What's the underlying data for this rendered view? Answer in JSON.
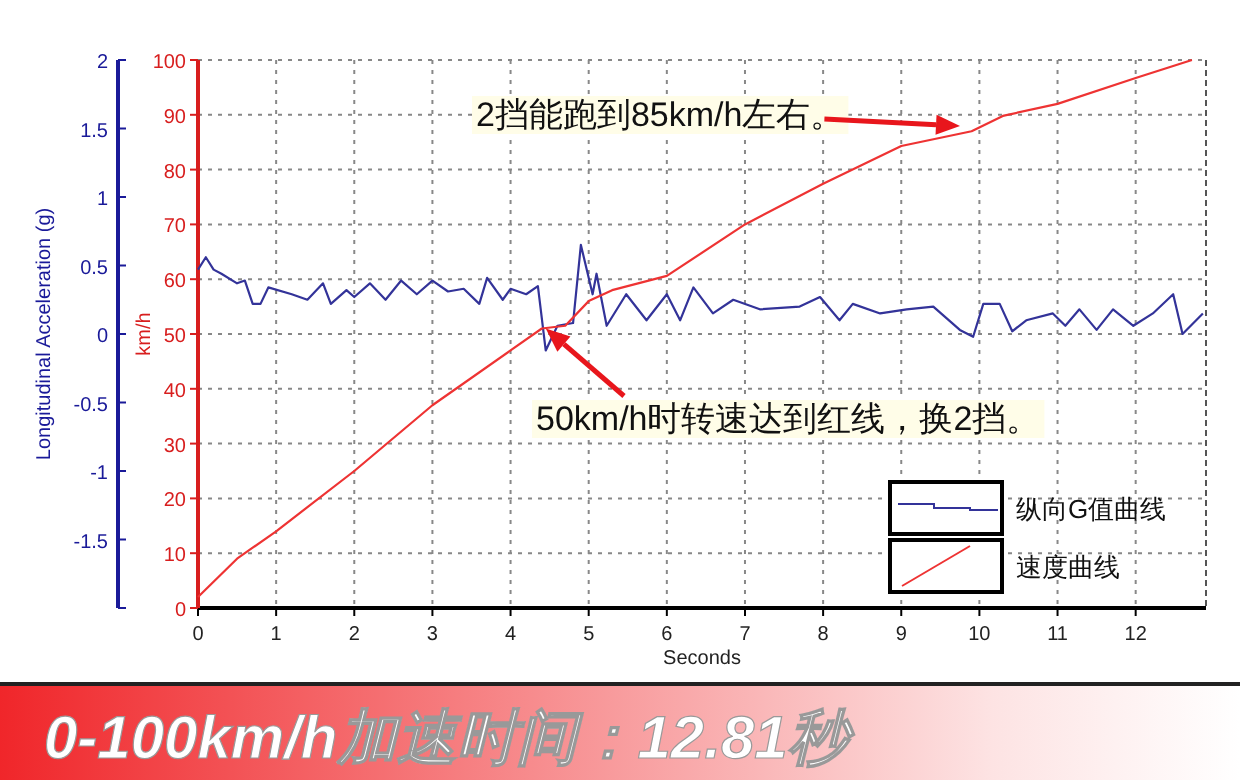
{
  "chart_data": {
    "type": "line",
    "title": "0-100km/h加速时间：12.81秒",
    "xlabel": "Seconds",
    "ylabel": "km/h",
    "y2label": "Longitudinal Acceleration (g)",
    "xlim": [
      0,
      12.9
    ],
    "xticks": [
      0,
      1,
      2,
      3,
      4,
      5,
      6,
      7,
      8,
      9,
      10,
      11,
      12
    ],
    "ylim": [
      0,
      100
    ],
    "yticks": [
      0,
      10,
      20,
      30,
      40,
      50,
      60,
      70,
      80,
      90,
      100
    ],
    "y2lim": [
      -2,
      2
    ],
    "y2ticks": [
      {
        "value": -2,
        "label": null
      },
      -1.5,
      -1,
      -0.5,
      0,
      0.5,
      1,
      1.5,
      2
    ],
    "grid": true,
    "legend": "bottom right",
    "series": [
      {
        "name": "纵向G值曲线",
        "color": "#333399",
        "axis": "y2",
        "x": [
          0,
          0.1,
          0.2,
          0.3,
          0.5,
          0.6,
          0.7,
          0.8,
          0.9,
          1.2,
          1.4,
          1.6,
          1.7,
          1.9,
          2.0,
          2.2,
          2.4,
          2.6,
          2.8,
          3.0,
          3.2,
          3.4,
          3.6,
          3.7,
          3.9,
          4.0,
          4.2,
          4.35,
          4.45,
          4.6,
          4.8,
          4.9,
          5.05,
          5.1,
          5.23,
          5.48,
          5.74,
          6.0,
          6.17,
          6.34,
          6.59,
          6.85,
          7.19,
          7.7,
          7.96,
          8.21,
          8.38,
          8.73,
          9.07,
          9.41,
          9.75,
          9.92,
          10.05,
          10.26,
          10.42,
          10.6,
          10.94,
          11.1,
          11.28,
          11.5,
          11.71,
          11.97,
          12.22,
          12.48,
          12.6,
          12.86
        ],
        "values": [
          0.47,
          0.56,
          0.47,
          0.44,
          0.37,
          0.39,
          0.22,
          0.22,
          0.34,
          0.29,
          0.25,
          0.37,
          0.22,
          0.32,
          0.27,
          0.37,
          0.25,
          0.39,
          0.29,
          0.39,
          0.31,
          0.33,
          0.22,
          0.41,
          0.25,
          0.33,
          0.29,
          0.35,
          -0.12,
          0.06,
          0.08,
          0.65,
          0.29,
          0.44,
          0.06,
          0.29,
          0.1,
          0.29,
          0.1,
          0.34,
          0.15,
          0.25,
          0.18,
          0.2,
          0.27,
          0.1,
          0.22,
          0.15,
          0.18,
          0.2,
          0.03,
          -0.02,
          0.22,
          0.22,
          0.02,
          0.1,
          0.15,
          0.06,
          0.18,
          0.03,
          0.18,
          0.06,
          0.15,
          0.29,
          0.0,
          0.15
        ]
      },
      {
        "name": "速度曲线",
        "color": "#ee3333",
        "x": [
          0,
          0.5,
          0.7,
          1,
          2,
          3,
          4,
          4.4,
          4.7,
          5,
          5.3,
          6,
          7,
          8,
          9,
          9.9,
          10.3,
          11,
          12,
          12.72
        ],
        "values": [
          2,
          9,
          11,
          14,
          25,
          37,
          47,
          51,
          51.5,
          56,
          58,
          60.6,
          70,
          77.4,
          84.3,
          87,
          89.8,
          92,
          96.7,
          100
        ]
      }
    ],
    "annotations": [
      "2挡能跑到85km/h左右。",
      {
        "text": "50km/h时转速达到红线，换2挡。",
        "x": 4.45,
        "y": 51
      }
    ]
  }
}
